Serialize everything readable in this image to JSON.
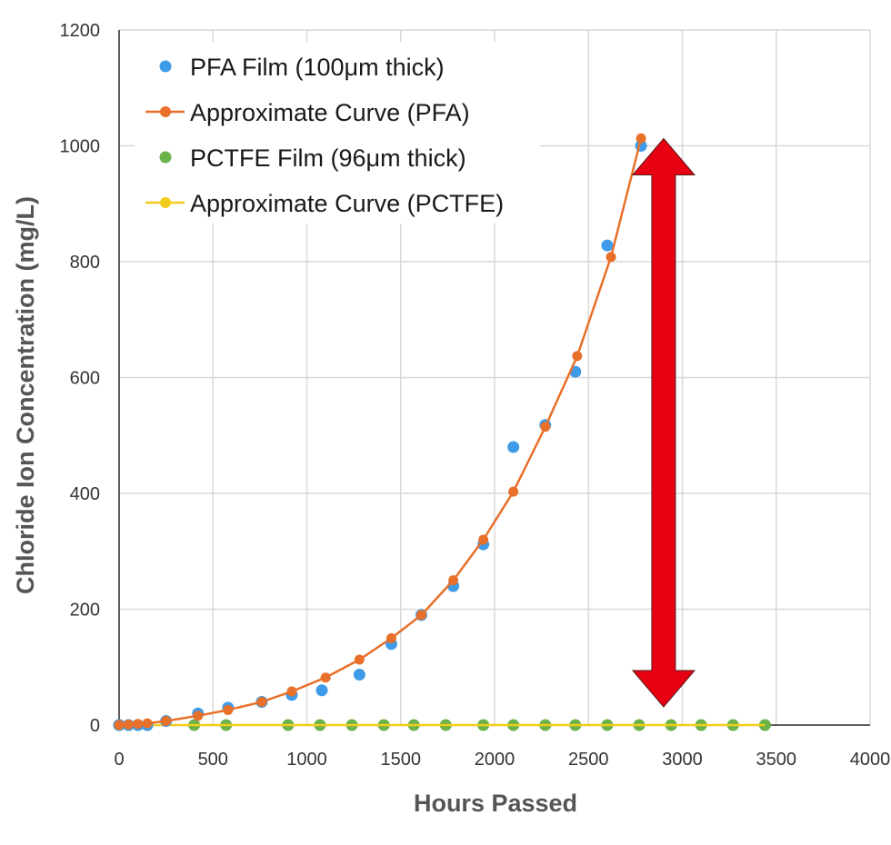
{
  "chart_data": {
    "type": "scatter",
    "title": "",
    "xlabel": "Hours Passed",
    "ylabel": "Chloride Ion Concentration (mg/L)",
    "xlim": [
      0,
      4000
    ],
    "ylim": [
      0,
      1200
    ],
    "x_ticks": [
      0,
      500,
      1000,
      1500,
      2000,
      2500,
      3000,
      3500,
      4000
    ],
    "y_ticks": [
      0,
      200,
      400,
      600,
      800,
      1000,
      1200
    ],
    "grid": true,
    "legend_position": "top-left",
    "series": [
      {
        "name": "PFA Film (100μm thick)",
        "kind": "markers",
        "color": "#3e9be8",
        "x": [
          0,
          50,
          100,
          150,
          250,
          420,
          580,
          760,
          920,
          1080,
          1280,
          1450,
          1610,
          1780,
          1940,
          2100,
          2270,
          2430,
          2600,
          2780
        ],
        "y": [
          0,
          0,
          0,
          0,
          7,
          20,
          30,
          40,
          52,
          60,
          87,
          140,
          190,
          240,
          312,
          480,
          518,
          610,
          828,
          1000
        ]
      },
      {
        "name": "Approximate Curve (PFA)",
        "kind": "line-markers",
        "color": "#e8702a",
        "x": [
          0,
          50,
          100,
          150,
          250,
          420,
          580,
          760,
          920,
          1100,
          1280,
          1450,
          1610,
          1780,
          1940,
          2100,
          2270,
          2440,
          2620,
          2780
        ],
        "y": [
          0,
          1,
          2,
          3,
          7,
          16,
          26,
          40,
          58,
          82,
          113,
          150,
          190,
          250,
          320,
          403,
          515,
          637,
          808,
          1013
        ]
      },
      {
        "name": "PCTFE Film (96μm thick)",
        "kind": "markers",
        "color": "#6ab24a",
        "x": [
          0,
          50,
          100,
          150,
          400,
          570,
          900,
          1070,
          1240,
          1410,
          1570,
          1740,
          1940,
          2100,
          2270,
          2430,
          2600,
          2770,
          2940,
          3100,
          3270,
          3440
        ],
        "y": [
          0,
          0,
          0,
          0,
          0,
          0,
          0,
          0,
          0,
          0,
          0,
          0,
          0,
          0,
          0,
          0,
          0,
          0,
          0,
          0,
          0,
          0
        ]
      },
      {
        "name": "Approximate Curve (PCTFE)",
        "kind": "line-markers",
        "color": "#f3cd1b",
        "x": [
          0,
          3440
        ],
        "y": [
          0,
          0
        ]
      }
    ],
    "annotation": {
      "type": "double-arrow",
      "color": "#e60012",
      "x": 2900,
      "y_from": 1000,
      "y_to": 0
    }
  }
}
